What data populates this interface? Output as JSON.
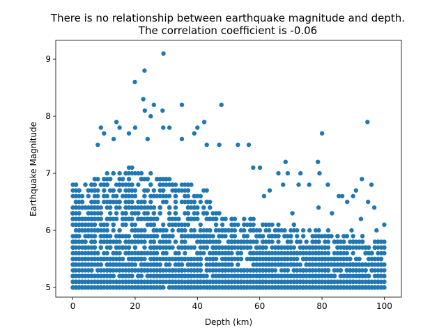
{
  "chart_data": {
    "type": "scatter",
    "title_lines": [
      "There is no relationship between earthquake magnitude and depth.",
      "The correlation coefficient is -0.06"
    ],
    "xlabel": "Depth (km)",
    "ylabel": "Earthquake Magnitude",
    "xlim": [
      -5.5,
      105.5
    ],
    "ylim": [
      4.83,
      9.33
    ],
    "xticks": [
      0,
      20,
      40,
      60,
      80,
      100
    ],
    "yticks": [
      5,
      6,
      7,
      8,
      9
    ],
    "grid": false,
    "legend": "none",
    "colors": {
      "marker": "#1f77b4"
    },
    "depth_range": [
      0,
      100
    ],
    "magnitude_range": [
      5.0,
      9.1
    ],
    "points": [
      [
        29.1,
        9.1
      ],
      [
        23.0,
        8.8
      ],
      [
        19.9,
        8.6
      ],
      [
        22.6,
        8.3
      ],
      [
        26.0,
        8.2
      ],
      [
        35.0,
        8.2
      ],
      [
        47.7,
        8.2
      ],
      [
        23.1,
        8.1
      ],
      [
        28.8,
        8.1
      ],
      [
        25.0,
        8.0
      ],
      [
        14.0,
        7.9
      ],
      [
        42.2,
        7.9
      ],
      [
        94.6,
        7.9
      ],
      [
        15.0,
        7.8
      ],
      [
        9.0,
        7.8
      ],
      [
        20.0,
        7.8
      ],
      [
        29.0,
        7.8
      ],
      [
        31.0,
        7.8
      ],
      [
        40.0,
        7.8
      ],
      [
        80.0,
        7.7
      ],
      [
        10.0,
        7.7
      ],
      [
        18.0,
        7.7
      ],
      [
        39.0,
        7.7
      ],
      [
        13.1,
        7.6
      ],
      [
        24.0,
        7.6
      ],
      [
        35.0,
        7.6
      ],
      [
        47.0,
        7.5
      ],
      [
        53.0,
        7.5
      ],
      [
        56.5,
        7.5
      ],
      [
        8.0,
        7.5
      ],
      [
        43.0,
        7.5
      ],
      [
        78.7,
        7.2
      ],
      [
        68.3,
        7.2
      ],
      [
        57.9,
        7.1
      ],
      [
        60.1,
        7.1
      ],
      [
        73.1,
        7.0
      ],
      [
        69.0,
        7.0
      ],
      [
        66.0,
        7.0
      ],
      [
        79.2,
        7.0
      ],
      [
        92.8,
        6.9
      ],
      [
        75.9,
        6.8
      ],
      [
        81.9,
        6.8
      ],
      [
        95.9,
        6.8
      ],
      [
        63.2,
        6.7
      ],
      [
        90.9,
        6.7
      ],
      [
        72.5,
        6.8
      ],
      [
        67.5,
        6.8
      ],
      [
        85.4,
        6.6
      ],
      [
        86.5,
        6.6
      ],
      [
        61.4,
        6.6
      ],
      [
        90.0,
        6.6
      ],
      [
        88.1,
        6.5
      ],
      [
        94.8,
        6.5
      ],
      [
        78.9,
        6.4
      ],
      [
        96.8,
        6.4
      ],
      [
        70.5,
        6.3
      ],
      [
        83.2,
        6.3
      ],
      [
        92.5,
        6.2
      ],
      [
        -0.1,
        6.3
      ],
      [
        100.0,
        6.1
      ],
      [
        97.5,
        6.0
      ],
      [
        89.5,
        6.0
      ],
      [
        0.5,
        5.8
      ],
      [
        1.2,
        5.9
      ],
      [
        0.0,
        5.5
      ],
      [
        0.2,
        5.2
      ],
      [
        0.1,
        5.0
      ],
      [
        0.3,
        5.4
      ],
      [
        0.1,
        5.1
      ],
      [
        0.4,
        5.3
      ]
    ],
    "cloud": {
      "count": 3200,
      "seed": 1234
    }
  }
}
